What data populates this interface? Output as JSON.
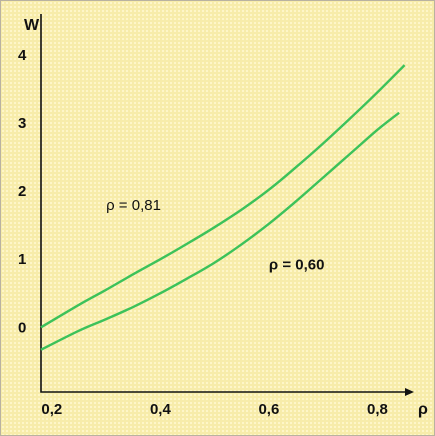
{
  "chart_data": {
    "type": "line",
    "xlabel": "ρ",
    "ylabel": "W",
    "xlim": [
      0.18,
      0.86
    ],
    "ylim": [
      -0.95,
      4.6
    ],
    "x_ticks": [
      0.2,
      0.4,
      0.6,
      0.8
    ],
    "x_tick_labels": [
      "0,2",
      "0,4",
      "0,6",
      "0,8"
    ],
    "y_ticks": [
      0,
      1,
      2,
      3,
      4
    ],
    "y_tick_labels": [
      "0",
      "1",
      "2",
      "3",
      "4"
    ],
    "grid": false,
    "legend": "none",
    "series": [
      {
        "name": "ρ = 0,81",
        "color": "#3cc25a",
        "x": [
          0.18,
          0.25,
          0.3,
          0.35,
          0.4,
          0.45,
          0.5,
          0.55,
          0.6,
          0.65,
          0.7,
          0.75,
          0.8,
          0.85
        ],
        "y": [
          0.0,
          0.33,
          0.55,
          0.78,
          1.0,
          1.23,
          1.47,
          1.73,
          2.02,
          2.35,
          2.7,
          3.07,
          3.45,
          3.85
        ]
      },
      {
        "name": "ρ = 0,60",
        "color": "#3cc25a",
        "x": [
          0.18,
          0.25,
          0.3,
          0.35,
          0.4,
          0.45,
          0.5,
          0.55,
          0.6,
          0.65,
          0.7,
          0.75,
          0.8,
          0.84
        ],
        "y": [
          -0.33,
          -0.05,
          0.12,
          0.3,
          0.5,
          0.72,
          0.95,
          1.22,
          1.52,
          1.85,
          2.2,
          2.55,
          2.9,
          3.15
        ]
      }
    ],
    "annotations": [
      {
        "text": "ρ = 0,81",
        "x": 0.3,
        "y": 1.72,
        "bold": false
      },
      {
        "text": "ρ = 0,60",
        "x": 0.6,
        "y": 0.85,
        "bold": true
      }
    ]
  }
}
